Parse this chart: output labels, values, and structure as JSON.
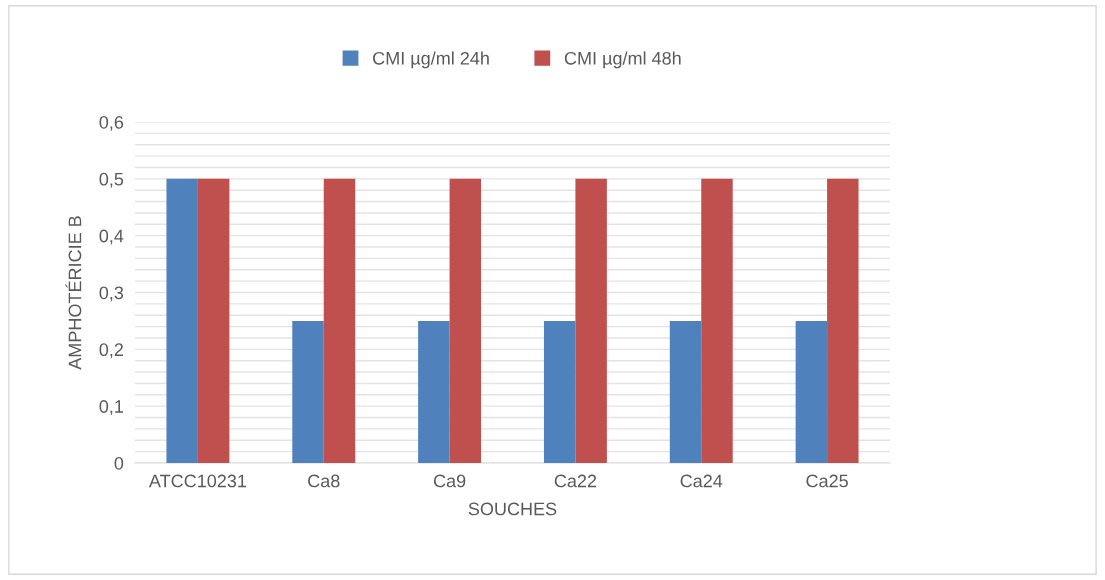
{
  "chart_data": {
    "type": "bar",
    "xlabel": "SOUCHES",
    "ylabel": "AMPHOTÉRICIE B",
    "categories": [
      "ATCC10231",
      "Ca8",
      "Ca9",
      "Ca22",
      "Ca24",
      "Ca25"
    ],
    "series": [
      {
        "name": "CMI µg/ml 24h",
        "color": "#4f81bd",
        "values": [
          0.5,
          0.25,
          0.25,
          0.25,
          0.25,
          0.25
        ]
      },
      {
        "name": "CMI µg/ml 48h",
        "color": "#c0504d",
        "values": [
          0.5,
          0.5,
          0.5,
          0.5,
          0.5,
          0.5
        ]
      }
    ],
    "ylim": [
      0,
      0.6
    ],
    "yticks": [
      {
        "value": 0,
        "label": "0"
      },
      {
        "value": 0.02,
        "label": null
      },
      {
        "value": 0.04,
        "label": null
      },
      {
        "value": 0.06,
        "label": null
      },
      {
        "value": 0.08,
        "label": null
      },
      {
        "value": 0.1,
        "label": "0,1"
      },
      {
        "value": 0.12,
        "label": null
      },
      {
        "value": 0.14,
        "label": null
      },
      {
        "value": 0.16,
        "label": null
      },
      {
        "value": 0.18,
        "label": null
      },
      {
        "value": 0.2,
        "label": "0,2"
      },
      {
        "value": 0.22,
        "label": null
      },
      {
        "value": 0.24,
        "label": null
      },
      {
        "value": 0.26,
        "label": null
      },
      {
        "value": 0.28,
        "label": null
      },
      {
        "value": 0.3,
        "label": "0,3"
      },
      {
        "value": 0.32,
        "label": null
      },
      {
        "value": 0.34,
        "label": null
      },
      {
        "value": 0.36,
        "label": null
      },
      {
        "value": 0.38,
        "label": null
      },
      {
        "value": 0.4,
        "label": "0,4"
      },
      {
        "value": 0.42,
        "label": null
      },
      {
        "value": 0.44,
        "label": null
      },
      {
        "value": 0.46,
        "label": null
      },
      {
        "value": 0.48,
        "label": null
      },
      {
        "value": 0.5,
        "label": "0,5"
      },
      {
        "value": 0.52,
        "label": null
      },
      {
        "value": 0.54,
        "label": null
      },
      {
        "value": 0.56,
        "label": null
      },
      {
        "value": 0.58,
        "label": null
      },
      {
        "value": 0.6,
        "label": "0,6"
      }
    ],
    "grid": "y",
    "legend": "top"
  }
}
